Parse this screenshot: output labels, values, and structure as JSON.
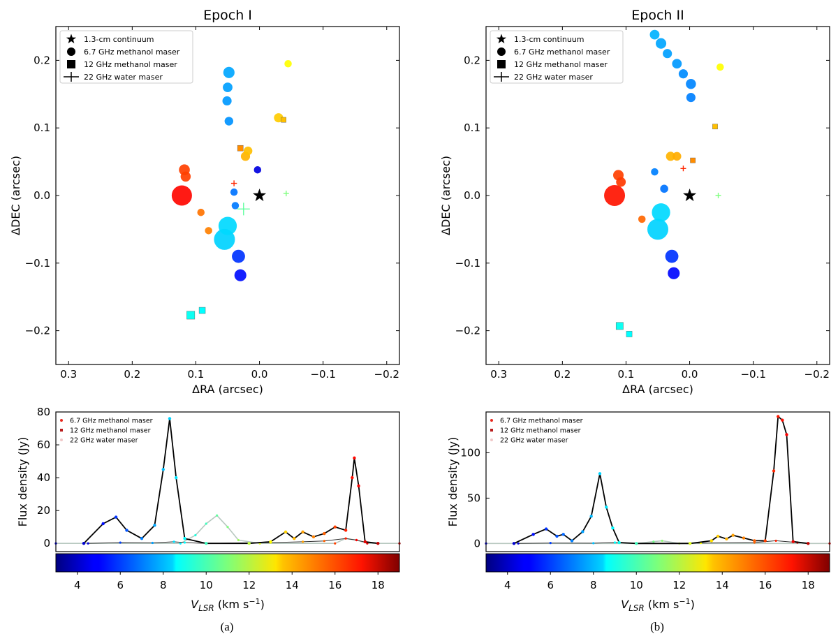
{
  "figure": {
    "captions": [
      "(a)",
      "(b)"
    ]
  },
  "chart_data": [
    {
      "type": "scatter",
      "title": "Epoch I",
      "xlabel": "ΔRA (arcsec)",
      "ylabel": "ΔDEC (arcsec)",
      "xlim": [
        0.32,
        -0.22
      ],
      "ylim": [
        -0.25,
        0.25
      ],
      "xticks": [
        "0.3",
        "0.2",
        "0.1",
        "0.0",
        "−0.1",
        "−0.2"
      ],
      "yticks": [
        "−0.2",
        "−0.1",
        "0.0",
        "0.1",
        "0.2"
      ],
      "legend": [
        "1.3-cm continuum",
        "6.7 GHz methanol maser",
        "12 GHz methanol maser",
        "22 GHz water maser"
      ],
      "continuum": {
        "x": 0.0,
        "y": 0.0
      },
      "methanol_6_7GHz": [
        {
          "x": 0.122,
          "y": 0.0,
          "v": 16.9,
          "flux": 52
        },
        {
          "x": 0.118,
          "y": 0.038,
          "v": 16.0,
          "flux": 9
        },
        {
          "x": 0.116,
          "y": 0.028,
          "v": 16.0,
          "flux": 7
        },
        {
          "x": 0.092,
          "y": -0.025,
          "v": 15.2,
          "flux": 2
        },
        {
          "x": 0.08,
          "y": -0.052,
          "v": 15.0,
          "flux": 2
        },
        {
          "x": 0.055,
          "y": -0.065,
          "v": 8.3,
          "flux": 76
        },
        {
          "x": 0.05,
          "y": -0.045,
          "v": 8.4,
          "flux": 40
        },
        {
          "x": 0.048,
          "y": 0.182,
          "v": 7.6,
          "flux": 10
        },
        {
          "x": 0.05,
          "y": 0.16,
          "v": 7.5,
          "flux": 6
        },
        {
          "x": 0.051,
          "y": 0.14,
          "v": 7.4,
          "flux": 5
        },
        {
          "x": 0.048,
          "y": 0.11,
          "v": 7.3,
          "flux": 4
        },
        {
          "x": 0.033,
          "y": -0.09,
          "v": 5.8,
          "flux": 16
        },
        {
          "x": 0.03,
          "y": -0.118,
          "v": 5.2,
          "flux": 12
        },
        {
          "x": 0.04,
          "y": 0.005,
          "v": 6.8,
          "flux": 2
        },
        {
          "x": 0.038,
          "y": -0.015,
          "v": 6.9,
          "flux": 2
        },
        {
          "x": 0.022,
          "y": 0.058,
          "v": 14.2,
          "flux": 5
        },
        {
          "x": 0.018,
          "y": 0.066,
          "v": 14.0,
          "flux": 4
        },
        {
          "x": -0.03,
          "y": 0.115,
          "v": 13.8,
          "flux": 5
        },
        {
          "x": -0.045,
          "y": 0.195,
          "v": 13.0,
          "flux": 2
        },
        {
          "x": 0.003,
          "y": 0.038,
          "v": 4.5,
          "flux": 2
        }
      ],
      "methanol_12GHz": [
        {
          "x": 0.108,
          "y": -0.177,
          "v": 9.2,
          "flux": 8
        },
        {
          "x": 0.09,
          "y": -0.17,
          "v": 9.0,
          "flux": 4
        },
        {
          "x": 0.03,
          "y": 0.07,
          "v": 14.8,
          "flux": 3
        },
        {
          "x": -0.038,
          "y": 0.112,
          "v": 14.0,
          "flux": 2
        }
      ],
      "water_22GHz": [
        {
          "x": 0.04,
          "y": 0.018,
          "v": 16.4,
          "flux": 3
        },
        {
          "x": -0.042,
          "y": 0.003,
          "v": 11.0,
          "flux": 2
        },
        {
          "x": 0.025,
          "y": -0.02,
          "v": 10.5,
          "flux": 17
        }
      ]
    },
    {
      "type": "line",
      "title": "",
      "xlabel": "V_LSR (km s^-1)",
      "ylabel": "Flux density (Jy)",
      "xlim": [
        3,
        19
      ],
      "ylim": [
        -5,
        80
      ],
      "yticks": [
        "0",
        "20",
        "40",
        "60",
        "80"
      ],
      "legend": [
        "6.7 GHz methanol maser",
        "12 GHz methanol maser",
        "22 GHz water maser"
      ],
      "colorbar": {
        "range": [
          3,
          19
        ],
        "ticks": [
          "4",
          "6",
          "8",
          "10",
          "12",
          "14",
          "16",
          "18"
        ]
      },
      "series": [
        {
          "name": "6.7 GHz methanol maser",
          "x": [
            4.3,
            5.2,
            5.8,
            6.3,
            7.0,
            7.6,
            8.0,
            8.3,
            8.6,
            9.0,
            10.0,
            12.0,
            13.0,
            13.7,
            14.1,
            14.5,
            15.0,
            15.5,
            16.0,
            16.5,
            16.8,
            16.9,
            17.1,
            17.4,
            18.0
          ],
          "y": [
            0,
            12,
            16,
            8,
            3,
            11,
            45,
            76,
            40,
            3,
            0,
            0,
            1,
            7,
            3,
            7,
            4,
            6,
            10,
            8,
            40,
            52,
            35,
            1,
            0
          ]
        },
        {
          "name": "12 GHz methanol maser",
          "x": [
            4.5,
            6.0,
            7.5,
            8.5,
            9.0,
            10.0,
            13.0,
            14.5,
            15.5,
            16.5,
            17.0,
            17.5,
            18.0
          ],
          "y": [
            0,
            0.5,
            0.3,
            1,
            0.5,
            0,
            0.5,
            1,
            1.5,
            3,
            2,
            0.5,
            0
          ]
        },
        {
          "name": "22 GHz water maser",
          "x": [
            3.0,
            8.8,
            9.5,
            10.0,
            10.5,
            11.0,
            11.5,
            12.5,
            16.0,
            16.5,
            17.0,
            17.5,
            19.0
          ],
          "y": [
            0,
            0,
            5,
            12,
            17,
            10,
            2,
            0,
            0,
            3,
            2,
            0,
            0
          ]
        }
      ]
    },
    {
      "type": "scatter",
      "title": "Epoch II",
      "xlabel": "ΔRA (arcsec)",
      "ylabel": "ΔDEC (arcsec)",
      "xlim": [
        0.32,
        -0.22
      ],
      "ylim": [
        -0.25,
        0.25
      ],
      "xticks": [
        "0.3",
        "0.2",
        "0.1",
        "0.0",
        "−0.1",
        "−0.2"
      ],
      "yticks": [
        "−0.2",
        "−0.1",
        "0.0",
        "0.1",
        "0.2"
      ],
      "legend": [
        "1.3-cm continuum",
        "6.7 GHz methanol maser",
        "12 GHz methanol maser",
        "22 GHz water maser"
      ],
      "continuum": {
        "x": 0.0,
        "y": 0.0
      },
      "methanol_6_7GHz": [
        {
          "x": 0.118,
          "y": 0.0,
          "v": 16.7,
          "flux": 140
        },
        {
          "x": 0.112,
          "y": 0.03,
          "v": 16.0,
          "flux": 8
        },
        {
          "x": 0.108,
          "y": 0.02,
          "v": 16.1,
          "flux": 6
        },
        {
          "x": 0.075,
          "y": -0.035,
          "v": 15.4,
          "flux": 2
        },
        {
          "x": 0.05,
          "y": -0.05,
          "v": 8.3,
          "flux": 77
        },
        {
          "x": 0.045,
          "y": -0.025,
          "v": 8.4,
          "flux": 40
        },
        {
          "x": 0.055,
          "y": 0.238,
          "v": 7.8,
          "flux": 6
        },
        {
          "x": 0.045,
          "y": 0.225,
          "v": 7.6,
          "flux": 8
        },
        {
          "x": 0.035,
          "y": 0.21,
          "v": 7.5,
          "flux": 5
        },
        {
          "x": 0.02,
          "y": 0.195,
          "v": 7.4,
          "flux": 6
        },
        {
          "x": 0.01,
          "y": 0.18,
          "v": 7.2,
          "flux": 5
        },
        {
          "x": -0.002,
          "y": 0.165,
          "v": 7.1,
          "flux": 7
        },
        {
          "x": -0.002,
          "y": 0.145,
          "v": 7.0,
          "flux": 5
        },
        {
          "x": 0.028,
          "y": -0.09,
          "v": 5.8,
          "flux": 16
        },
        {
          "x": 0.025,
          "y": -0.115,
          "v": 5.1,
          "flux": 12
        },
        {
          "x": 0.03,
          "y": 0.058,
          "v": 14.2,
          "flux": 5
        },
        {
          "x": 0.02,
          "y": 0.058,
          "v": 14.3,
          "flux": 4
        },
        {
          "x": -0.048,
          "y": 0.19,
          "v": 13.0,
          "flux": 2
        },
        {
          "x": 0.04,
          "y": 0.01,
          "v": 6.8,
          "flux": 3
        },
        {
          "x": 0.055,
          "y": 0.035,
          "v": 7.0,
          "flux": 2
        }
      ],
      "methanol_12GHz": [
        {
          "x": 0.11,
          "y": -0.193,
          "v": 9.2,
          "flux": 6
        },
        {
          "x": 0.095,
          "y": -0.205,
          "v": 9.0,
          "flux": 3
        },
        {
          "x": -0.04,
          "y": 0.102,
          "v": 14.0,
          "flux": 2
        },
        {
          "x": -0.005,
          "y": 0.052,
          "v": 14.8,
          "flux": 2
        }
      ],
      "water_22GHz": [
        {
          "x": -0.045,
          "y": 0.0,
          "v": 11.0,
          "flux": 2
        },
        {
          "x": 0.01,
          "y": 0.04,
          "v": 16.4,
          "flux": 2
        }
      ]
    },
    {
      "type": "line",
      "title": "",
      "xlabel": "V_LSR (km s^-1)",
      "ylabel": "Flux density (Jy)",
      "xlim": [
        3,
        19
      ],
      "ylim": [
        -9,
        145
      ],
      "yticks": [
        "0",
        "50",
        "100"
      ],
      "legend": [
        "6.7 GHz methanol maser",
        "12 GHz methanol maser",
        "22 GHz water maser"
      ],
      "colorbar": {
        "range": [
          3,
          19
        ],
        "ticks": [
          "4",
          "6",
          "8",
          "10",
          "12",
          "14",
          "16",
          "18"
        ]
      },
      "series": [
        {
          "name": "6.7 GHz methanol maser",
          "x": [
            4.3,
            5.2,
            5.8,
            6.3,
            6.6,
            7.0,
            7.5,
            7.9,
            8.3,
            8.6,
            8.9,
            9.2,
            10.0,
            12.5,
            13.5,
            13.8,
            14.2,
            14.5,
            15.0,
            15.5,
            16.0,
            16.4,
            16.6,
            16.8,
            17.0,
            17.3,
            18.0
          ],
          "y": [
            0,
            10,
            16,
            8,
            10,
            3,
            13,
            30,
            77,
            40,
            17,
            1,
            0,
            0,
            3,
            8,
            5,
            9,
            6,
            3,
            3,
            80,
            140,
            136,
            120,
            2,
            0
          ]
        },
        {
          "name": "12 GHz methanol maser",
          "x": [
            4.5,
            6.0,
            8.0,
            9.0,
            10.0,
            13.0,
            15.5,
            16.5,
            17.5,
            18.0
          ],
          "y": [
            0,
            0.5,
            0.3,
            1,
            0,
            0.5,
            1,
            3,
            1,
            0
          ]
        },
        {
          "name": "22 GHz water maser",
          "x": [
            3.0,
            10.0,
            10.8,
            11.2,
            12.0,
            19.0
          ],
          "y": [
            0,
            0,
            2,
            3,
            0,
            0
          ]
        }
      ]
    }
  ]
}
